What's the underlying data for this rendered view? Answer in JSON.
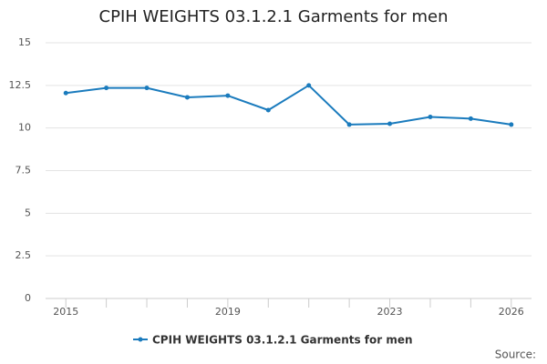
{
  "chart_data": {
    "type": "line",
    "title": "CPIH WEIGHTS 03.1.2.1 Garments for men",
    "x": [
      2015,
      2016,
      2017,
      2018,
      2019,
      2020,
      2021,
      2022,
      2023,
      2024,
      2025,
      2026
    ],
    "series": [
      {
        "name": "CPIH WEIGHTS 03.1.2.1 Garments for men",
        "color": "#1a7bbd",
        "values": [
          12.05,
          12.35,
          12.35,
          11.8,
          11.9,
          11.05,
          12.5,
          10.2,
          10.25,
          10.65,
          10.55,
          10.2
        ]
      }
    ],
    "xlim": [
      2014.5,
      2026.5
    ],
    "xticks": [
      2015,
      2019,
      2023,
      2026
    ],
    "ylim": [
      0,
      15
    ],
    "yticks": [
      0,
      2.5,
      5,
      7.5,
      10,
      12.5,
      15
    ],
    "grid": true,
    "legend": "bottom",
    "source": "Source:"
  }
}
